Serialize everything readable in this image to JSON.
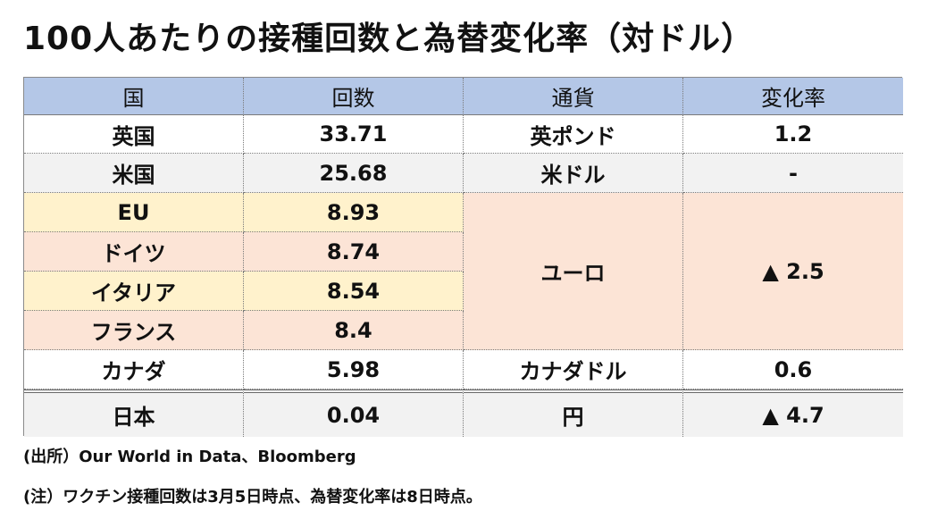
{
  "title": "100人あたりの接種回数と為替変化率（対ドル）",
  "table": {
    "headers": [
      "国",
      "回数",
      "通貨",
      "変化率"
    ],
    "rows": [
      {
        "country": "英国",
        "count": "33.71",
        "currency": "英ポンド",
        "change": "1.2"
      },
      {
        "country": "米国",
        "count": "25.68",
        "currency": "米ドル",
        "change": "-"
      },
      {
        "country": "EU",
        "count": "8.93"
      },
      {
        "country": "ドイツ",
        "count": "8.74"
      },
      {
        "country": "イタリア",
        "count": "8.54"
      },
      {
        "country": "フランス",
        "count": "8.4"
      },
      {
        "country": "カナダ",
        "count": "5.98",
        "currency": "カナダドル",
        "change": "0.6"
      },
      {
        "country": "日本",
        "count": "0.04",
        "currency": "円",
        "change": "▲ 4.7"
      }
    ],
    "euro_group": {
      "currency": "ユーロ",
      "change": "▲ 2.5"
    }
  },
  "notes": {
    "source": "(出所）Our World in Data、Bloomberg",
    "note": "(注）ワクチン接種回数は3月5日時点、為替変化率は8日時点。"
  },
  "colors": {
    "header": "#b4c7e7",
    "white": "#ffffff",
    "gray": "#f2f2f2",
    "yellow": "#fff2cc",
    "pink": "#fce4d6"
  }
}
